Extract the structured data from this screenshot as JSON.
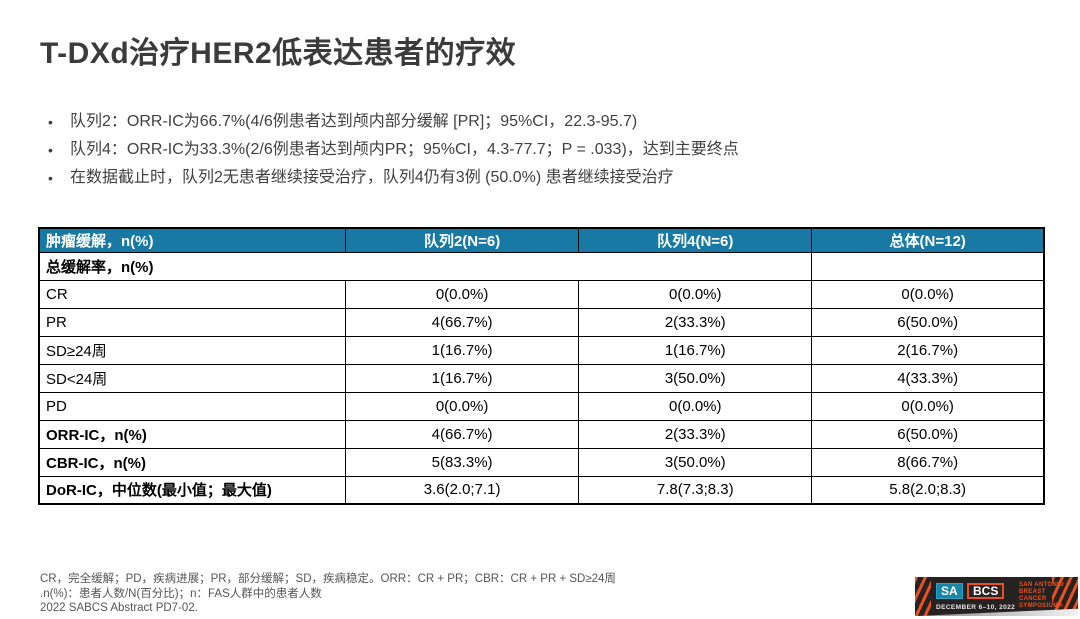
{
  "title": "T-DXd治疗HER2低表达患者的疗效",
  "bullets": [
    "队列2：ORR-IC为66.7%(4/6例患者达到颅内部分缓解 [PR]；95%CI，22.3-95.7)",
    "队列4：ORR-IC为33.3%(2/6例患者达到颅内PR；95%CI，4.3-77.7；P = .033)，达到主要终点",
    "在数据截止时，队列2无患者继续接受治疗，队列4仍有3例 (50.0%) 患者继续接受治疗"
  ],
  "table": {
    "col_headers": [
      "肿瘤缓解，n(%)",
      "队列2(N=6)",
      "队列4(N=6)",
      "总体(N=12)"
    ],
    "rows": [
      {
        "label": "总缓解率，n(%)",
        "values": [
          "",
          "",
          ""
        ]
      },
      {
        "label": "CR",
        "values": [
          "0(0.0%)",
          "0(0.0%)",
          "0(0.0%)"
        ]
      },
      {
        "label": "PR",
        "values": [
          "4(66.7%)",
          "2(33.3%)",
          "6(50.0%)"
        ]
      },
      {
        "label": "SD≥24周",
        "values": [
          "1(16.7%)",
          "1(16.7%)",
          "2(16.7%)"
        ]
      },
      {
        "label": "SD<24周",
        "values": [
          "1(16.7%)",
          "3(50.0%)",
          "4(33.3%)"
        ]
      },
      {
        "label": "PD",
        "values": [
          "0(0.0%)",
          "0(0.0%)",
          "0(0.0%)"
        ]
      },
      {
        "label": "ORR-IC，n(%)",
        "values": [
          "4(66.7%)",
          "2(33.3%)",
          "6(50.0%)"
        ]
      },
      {
        "label": "CBR-IC，n(%)",
        "values": [
          "5(83.3%)",
          "3(50.0%)",
          "8(66.7%)"
        ]
      },
      {
        "label": "DoR-IC，中位数(最小值；最大值)",
        "values": [
          "3.6(2.0;7.1)",
          "7.8(7.3;8.3)",
          "5.8(2.0;8.3)"
        ]
      }
    ]
  },
  "footnotes": [
    "CR，完全缓解；PD，疾病进展；PR，部分缓解；SD，疾病稳定。ORR：CR + PR；CBR：CR + PR + SD≥24周",
    ".n(%)：患者人数/N(百分比)；n：FAS人群中的患者人数",
    "2022 SABCS Abstract PD7-02."
  ],
  "logo": {
    "sa": "SA",
    "bcs": "BCS",
    "tagline": [
      "SAN ANTONIO",
      "BREAST",
      "CANCER",
      "SYMPOSIUM®"
    ],
    "date": "DECEMBER 6–10, 2022"
  },
  "colors": {
    "table_header_bg": "#1779a4",
    "table_border": "#000000",
    "title_text": "#3b3b3b",
    "body_text": "#404040",
    "footnote_text": "#555555",
    "logo_background": "#262221",
    "logo_orange": "#e8501e",
    "logo_teal": "#1c86a8"
  }
}
